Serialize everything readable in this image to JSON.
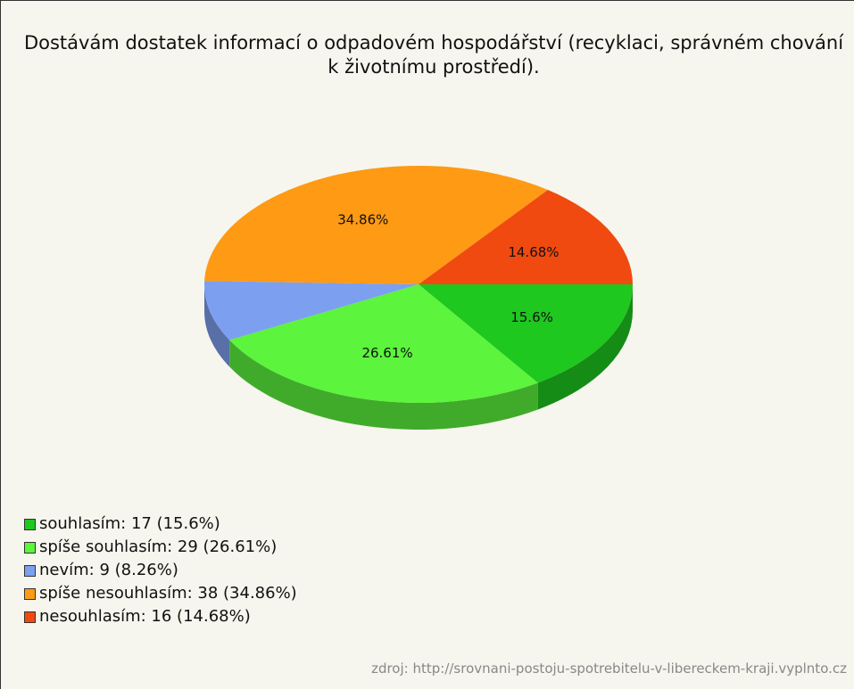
{
  "chart_data": {
    "type": "pie",
    "title": "Dostávám dostatek informací o odpadovém hospodářství (recyklaci, správném chování k životnímu prostředí).",
    "categories": [
      "souhlasím: 17 (15.6%)",
      "spíše souhlasím: 29 (26.61%)",
      "nevím: 9 (8.26%)",
      "spíše nesouhlasím: 38 (34.86%)",
      "nesouhlasím: 16 (14.68%)"
    ],
    "values": [
      15.6,
      26.61,
      8.26,
      34.86,
      14.68
    ],
    "value_labels": [
      "15.6%",
      "26.61%",
      null,
      "34.86%",
      "14.68%"
    ],
    "colors": [
      "#1ec81e",
      "#5cf43c",
      "#7d9ff0",
      "#ff9a14",
      "#f04a10"
    ],
    "legend": "bottom-left",
    "source": "zdroj: http://srovnani-postoju-spotrebitelu-v-libereckem-kraji.vyplnto.cz"
  }
}
